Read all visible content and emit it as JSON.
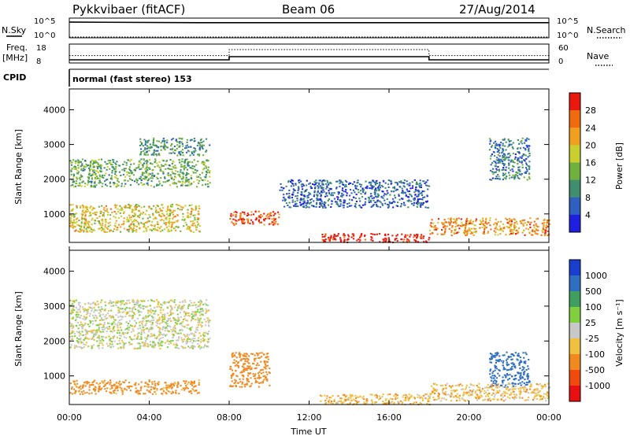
{
  "header": {
    "station": "Pykkvibaer (fitACF)",
    "beam": "Beam 06",
    "date": "27/Aug/2014"
  },
  "sky_panel": {
    "left_label": "N.Sky",
    "right_label": "N.Search",
    "left_ticks": [
      "10^5",
      "10^0"
    ],
    "right_ticks": [
      "10^5",
      "10^0"
    ]
  },
  "freq_panel": {
    "left_label_line1": "Freq.",
    "left_label_line2": "[MHz]",
    "right_label": "Nave",
    "left_ticks": [
      "18",
      "8"
    ],
    "right_ticks": [
      "60",
      "0"
    ]
  },
  "cpid_panel": {
    "label": "CPID",
    "text": "normal (fast stereo) 153"
  },
  "time_axis": {
    "label": "Time UT",
    "ticks": [
      "00:00",
      "04:00",
      "08:00",
      "12:00",
      "16:00",
      "20:00",
      "00:00"
    ]
  },
  "power_panel": {
    "ylabel": "Slant Range [km]",
    "yticks": [
      "1000",
      "2000",
      "3000",
      "4000"
    ],
    "colorbar_label": "Power [dB]",
    "colorbar_ticks": [
      "4",
      "8",
      "12",
      "16",
      "20",
      "24",
      "28"
    ],
    "colors": [
      "#1f1fdf",
      "#2f5fbf",
      "#3f8f6f",
      "#6fb03f",
      "#c8cf2f",
      "#f0a020",
      "#f06a10",
      "#e81a10"
    ]
  },
  "velocity_panel": {
    "ylabel": "Slant Range [km]",
    "yticks": [
      "1000",
      "2000",
      "3000",
      "4000"
    ],
    "colorbar_label": "Velocity [m s⁻¹]",
    "colorbar_ticks": [
      "1000",
      "500",
      "100",
      "25",
      "-25",
      "-100",
      "-500",
      "-1000"
    ],
    "colors": [
      "#1a3fcf",
      "#2f6fbf",
      "#3f9f5f",
      "#7fcf3f",
      "#c8c8c8",
      "#f0c040",
      "#f08a20",
      "#f04a10",
      "#e81010"
    ]
  },
  "chart_data": [
    {
      "type": "line",
      "title": "N.Sky / N.Search",
      "x": [
        "00:00",
        "06:30",
        "24:00"
      ],
      "ylim": [
        1,
        100000
      ],
      "scale": "log",
      "series": [
        {
          "name": "N.Sky",
          "values": [
            30000,
            20000,
            20000
          ]
        }
      ]
    },
    {
      "type": "line",
      "title": "Freq. / Nave",
      "x": [
        "00:00",
        "02:30",
        "08:00",
        "18:00",
        "24:00"
      ],
      "series": [
        {
          "name": "Freq. [MHz]",
          "values": [
            9,
            9,
            11,
            9,
            9
          ]
        },
        {
          "name": "Nave",
          "values": [
            22,
            22,
            45,
            22,
            22
          ]
        }
      ]
    },
    {
      "type": "heatmap",
      "title": "Power [dB]",
      "xlabel": "Time UT",
      "ylabel": "Slant Range [km]",
      "xlim": [
        0,
        24
      ],
      "ylim": [
        180,
        4600
      ],
      "zlim": [
        0,
        30
      ],
      "regions": [
        {
          "t": [
            0.0,
            6.5
          ],
          "r": [
            500,
            1300
          ],
          "power": 18
        },
        {
          "t": [
            0.0,
            7.0
          ],
          "r": [
            1800,
            2600
          ],
          "power": 12
        },
        {
          "t": [
            3.5,
            7.0
          ],
          "r": [
            2700,
            3200
          ],
          "power": 10
        },
        {
          "t": [
            8.0,
            10.5
          ],
          "r": [
            700,
            1100
          ],
          "power": 26
        },
        {
          "t": [
            12.5,
            18.0
          ],
          "r": [
            200,
            450
          ],
          "power": 30
        },
        {
          "t": [
            10.5,
            18.0
          ],
          "r": [
            1200,
            2000
          ],
          "power": 6
        },
        {
          "t": [
            18.0,
            24.0
          ],
          "r": [
            400,
            900
          ],
          "power": 22
        },
        {
          "t": [
            21.0,
            23.0
          ],
          "r": [
            2000,
            3200
          ],
          "power": 8
        }
      ]
    },
    {
      "type": "heatmap",
      "title": "Velocity [m s-1]",
      "xlabel": "Time UT",
      "ylabel": "Slant Range [km]",
      "xlim": [
        0,
        24
      ],
      "ylim": [
        180,
        4600
      ],
      "zlim": [
        -1000,
        1000
      ],
      "regions": [
        {
          "t": [
            0.0,
            6.5
          ],
          "r": [
            500,
            900
          ],
          "velocity": -150
        },
        {
          "t": [
            0.0,
            7.0
          ],
          "r": [
            1800,
            3200
          ],
          "velocity": 0
        },
        {
          "t": [
            8.0,
            10.0
          ],
          "r": [
            700,
            1700
          ],
          "velocity": -300
        },
        {
          "t": [
            12.5,
            18.0
          ],
          "r": [
            200,
            500
          ],
          "velocity": -80
        },
        {
          "t": [
            21.0,
            23.0
          ],
          "r": [
            700,
            1700
          ],
          "velocity": 800
        },
        {
          "t": [
            18.0,
            24.0
          ],
          "r": [
            300,
            800
          ],
          "velocity": -60
        }
      ]
    }
  ]
}
